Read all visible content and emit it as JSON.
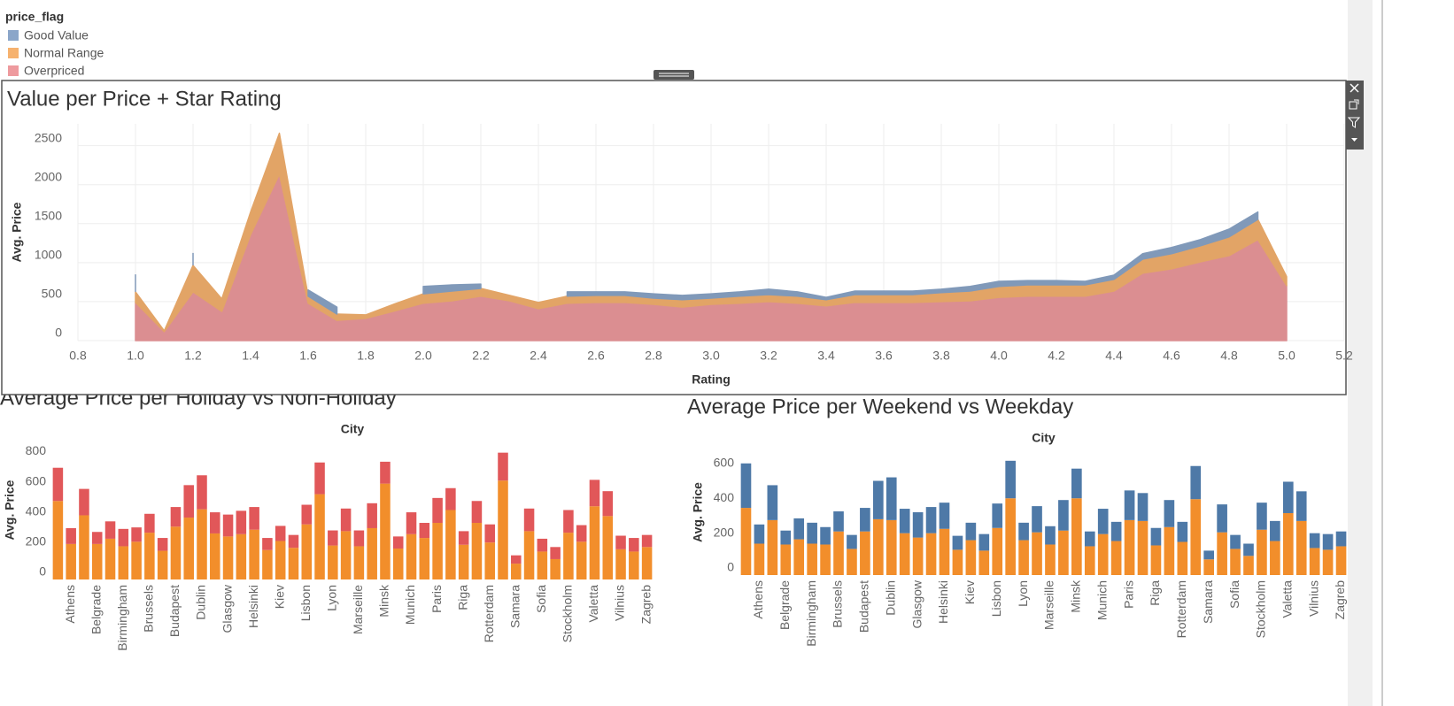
{
  "chart_data": [
    {
      "type": "area",
      "title": "Value per Price + Star Rating",
      "legend_title": "price_flag",
      "xlabel": "Rating",
      "ylabel": "Avg. Price",
      "x": [
        1.0,
        1.1,
        1.2,
        1.3,
        1.4,
        1.5,
        1.6,
        1.7,
        1.8,
        1.9,
        2.0,
        2.1,
        2.2,
        2.3,
        2.4,
        2.5,
        2.6,
        2.7,
        2.8,
        2.9,
        3.0,
        3.1,
        3.2,
        3.3,
        3.4,
        3.5,
        3.6,
        3.7,
        3.8,
        3.9,
        4.0,
        4.1,
        4.2,
        4.3,
        4.4,
        4.5,
        4.6,
        4.7,
        4.8,
        4.9,
        5.0
      ],
      "series": [
        {
          "name": "Good Value",
          "color": "#8ba6c9",
          "values": [
            225,
            null,
            160,
            null,
            null,
            null,
            80,
            90,
            null,
            null,
            95,
            80,
            55,
            null,
            null,
            55,
            45,
            45,
            55,
            55,
            55,
            55,
            70,
            55,
            30,
            45,
            45,
            45,
            45,
            60,
            65,
            55,
            55,
            45,
            55,
            70,
            80,
            80,
            100,
            95,
            null
          ]
        },
        {
          "name": "Normal Range",
          "color": "#f6b26f",
          "values": [
            135,
            10,
            340,
            160,
            290,
            525,
            90,
            80,
            45,
            90,
            120,
            125,
            100,
            70,
            80,
            90,
            90,
            90,
            80,
            95,
            80,
            90,
            90,
            90,
            80,
            100,
            100,
            100,
            115,
            125,
            140,
            145,
            145,
            145,
            150,
            180,
            195,
            205,
            240,
            260,
            115
          ]
        },
        {
          "name": "Overpriced",
          "color": "#ee9a9e",
          "values": [
            490,
            115,
            625,
            375,
            1360,
            2135,
            480,
            260,
            285,
            380,
            480,
            510,
            570,
            510,
            410,
            480,
            490,
            490,
            465,
            430,
            465,
            480,
            500,
            480,
            445,
            490,
            490,
            490,
            500,
            510,
            555,
            570,
            570,
            570,
            635,
            865,
            920,
            1010,
            1090,
            1295,
            705
          ]
        }
      ],
      "xlim": [
        0.8,
        5.2
      ],
      "xticks": [
        0.8,
        {
          "value": 1.0,
          "label": "1.0"
        },
        1.2,
        1.4,
        1.6,
        1.8,
        {
          "value": 2.0,
          "label": "2.0"
        },
        2.2,
        2.4,
        2.6,
        2.8,
        {
          "value": 3.0,
          "label": "3.0"
        },
        3.2,
        3.4,
        3.6,
        3.8,
        {
          "value": 4.0,
          "label": "4.0"
        },
        4.2,
        4.4,
        4.6,
        4.8,
        {
          "value": 5.0,
          "label": "5.0"
        },
        5.2
      ],
      "ylim": [
        0,
        2780
      ],
      "yticks": [
        0,
        500,
        1000,
        1500,
        2000,
        2500
      ],
      "grid": true
    },
    {
      "type": "bar",
      "title": "Average Price per Holiday vs Non-Holiday",
      "xlabel": "City",
      "ylabel": "Avg. Price",
      "categories": [
        null,
        "Athens",
        null,
        "Belgrade",
        null,
        "Birmingham",
        null,
        "Brussels",
        null,
        "Budapest",
        null,
        "Dublin",
        null,
        "Glasgow",
        null,
        "Helsinki",
        null,
        "Kiev",
        null,
        "Lisbon",
        null,
        "Lyon",
        null,
        "Marseille",
        null,
        "Minsk",
        null,
        "Munich",
        null,
        "Paris",
        null,
        "Riga",
        null,
        "Rotterdam",
        null,
        "Samara",
        null,
        "Sofia",
        null,
        "Stockholm",
        null,
        "Valetta",
        null,
        "Vilnius",
        null,
        "Zagreb"
      ],
      "series": [
        {
          "color": "#f28e2b",
          "values": [
            520,
            235,
            425,
            235,
            270,
            220,
            250,
            310,
            190,
            350,
            410,
            465,
            305,
            285,
            300,
            330,
            195,
            255,
            210,
            365,
            565,
            225,
            320,
            220,
            340,
            635,
            205,
            300,
            275,
            375,
            460,
            230,
            375,
            245,
            655,
            105,
            320,
            185,
            135,
            310,
            250,
            485,
            420,
            200,
            185,
            215
          ]
        },
        {
          "color": "#e15759",
          "values": [
            220,
            105,
            175,
            80,
            115,
            115,
            95,
            125,
            85,
            130,
            215,
            225,
            140,
            145,
            155,
            150,
            80,
            100,
            85,
            130,
            210,
            100,
            150,
            105,
            165,
            145,
            80,
            145,
            100,
            165,
            145,
            90,
            145,
            120,
            185,
            55,
            150,
            85,
            80,
            150,
            110,
            175,
            165,
            90,
            90,
            80
          ]
        }
      ],
      "ylim": [
        0,
        920
      ],
      "yticks": [
        0,
        200,
        400,
        600,
        800
      ],
      "grid": false
    },
    {
      "type": "bar",
      "title": "Average Price per Weekend vs Weekday",
      "xlabel": "City",
      "ylabel": "Avg. Price",
      "categories": [
        null,
        "Athens",
        null,
        "Belgrade",
        null,
        "Birmingham",
        null,
        "Brussels",
        null,
        "Budapest",
        null,
        "Dublin",
        null,
        "Glasgow",
        null,
        "Helsinki",
        null,
        "Kiev",
        null,
        "Lisbon",
        null,
        "Lyon",
        null,
        "Marseille",
        null,
        "Minsk",
        null,
        "Munich",
        null,
        "Paris",
        null,
        "Riga",
        null,
        "Rotterdam",
        null,
        "Samara",
        null,
        "Sofia",
        null,
        "Stockholm",
        null,
        "Valetta",
        null,
        "Vilnius",
        null,
        "Zagreb"
      ],
      "series": [
        {
          "color": "#f28e2b",
          "values": [
            385,
            180,
            315,
            175,
            205,
            180,
            175,
            250,
            150,
            250,
            320,
            315,
            240,
            215,
            240,
            265,
            145,
            200,
            140,
            270,
            440,
            200,
            245,
            175,
            255,
            440,
            165,
            235,
            195,
            315,
            310,
            170,
            275,
            190,
            435,
            90,
            245,
            150,
            110,
            260,
            195,
            355,
            310,
            155,
            145,
            165
          ]
        },
        {
          "color": "#4e79a7",
          "values": [
            255,
            110,
            200,
            80,
            120,
            120,
            100,
            115,
            80,
            135,
            220,
            245,
            140,
            145,
            150,
            150,
            80,
            100,
            95,
            140,
            215,
            100,
            150,
            105,
            175,
            170,
            85,
            145,
            110,
            170,
            160,
            100,
            155,
            115,
            190,
            50,
            160,
            80,
            70,
            155,
            115,
            180,
            170,
            85,
            90,
            85
          ]
        }
      ],
      "ylim": [
        0,
        720
      ],
      "yticks": [
        0,
        200,
        400,
        600
      ],
      "grid": false
    }
  ]
}
